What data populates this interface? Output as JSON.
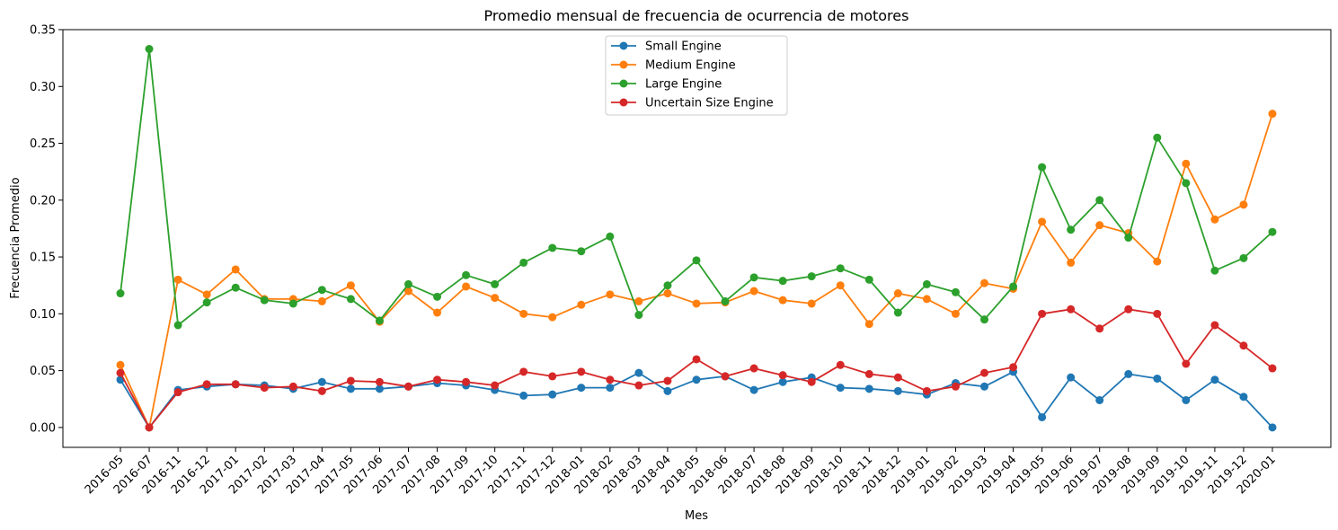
{
  "chart_data": {
    "type": "line",
    "title": "Promedio mensual de frecuencia de ocurrencia de motores",
    "xlabel": "Mes",
    "ylabel": "Frecuencia Promedio",
    "ylim": [
      -0.0175,
      0.35
    ],
    "yticks": [
      "0.00",
      "0.05",
      "0.10",
      "0.15",
      "0.20",
      "0.25",
      "0.30",
      "0.35"
    ],
    "grid": false,
    "legend_position": "top-center",
    "categories": [
      "2016-05",
      "2016-07",
      "2016-11",
      "2016-12",
      "2017-01",
      "2017-02",
      "2017-03",
      "2017-04",
      "2017-05",
      "2017-06",
      "2017-07",
      "2017-08",
      "2017-09",
      "2017-10",
      "2017-11",
      "2017-12",
      "2018-01",
      "2018-02",
      "2018-03",
      "2018-04",
      "2018-05",
      "2018-06",
      "2018-07",
      "2018-08",
      "2018-09",
      "2018-10",
      "2018-11",
      "2018-12",
      "2019-01",
      "2019-02",
      "2019-03",
      "2019-04",
      "2019-05",
      "2019-06",
      "2019-07",
      "2019-08",
      "2019-09",
      "2019-10",
      "2019-11",
      "2019-12",
      "2020-01"
    ],
    "series": [
      {
        "name": "Small Engine",
        "color": "#1f77b4",
        "values": [
          0.042,
          0.0,
          0.033,
          0.036,
          0.038,
          0.037,
          0.034,
          0.04,
          0.034,
          0.034,
          0.036,
          0.039,
          0.037,
          0.033,
          0.028,
          0.029,
          0.035,
          0.035,
          0.048,
          0.032,
          0.042,
          0.045,
          0.033,
          0.04,
          0.044,
          0.035,
          0.034,
          0.032,
          0.029,
          0.039,
          0.036,
          0.049,
          0.009,
          0.044,
          0.024,
          0.047,
          0.043,
          0.024,
          0.042,
          0.027,
          0.0
        ]
      },
      {
        "name": "Medium Engine",
        "color": "#ff7f0e",
        "values": [
          0.055,
          0.0,
          0.13,
          0.117,
          0.139,
          0.113,
          0.113,
          0.111,
          0.125,
          0.093,
          0.12,
          0.101,
          0.124,
          0.114,
          0.1,
          0.097,
          0.108,
          0.117,
          0.111,
          0.118,
          0.109,
          0.11,
          0.12,
          0.112,
          0.109,
          0.125,
          0.091,
          0.118,
          0.113,
          0.1,
          0.127,
          0.122,
          0.181,
          0.145,
          0.178,
          0.171,
          0.146,
          0.232,
          0.183,
          0.196,
          0.276
        ]
      },
      {
        "name": "Large Engine",
        "color": "#2ca02c",
        "values": [
          0.118,
          0.333,
          0.09,
          0.11,
          0.123,
          0.112,
          0.109,
          0.121,
          0.113,
          0.094,
          0.126,
          0.115,
          0.134,
          0.126,
          0.145,
          0.158,
          0.155,
          0.168,
          0.099,
          0.125,
          0.147,
          0.111,
          0.132,
          0.129,
          0.133,
          0.14,
          0.13,
          0.101,
          0.126,
          0.119,
          0.095,
          0.124,
          0.229,
          0.174,
          0.2,
          0.167,
          0.255,
          0.215,
          0.138,
          0.149,
          0.172
        ]
      },
      {
        "name": "Uncertain Size Engine",
        "color": "#d62728",
        "values": [
          0.048,
          0.0,
          0.031,
          0.038,
          0.038,
          0.035,
          0.036,
          0.032,
          0.041,
          0.04,
          0.036,
          0.042,
          0.04,
          0.037,
          0.049,
          0.045,
          0.049,
          0.042,
          0.037,
          0.041,
          0.06,
          0.045,
          0.052,
          0.046,
          0.04,
          0.055,
          0.047,
          0.044,
          0.032,
          0.036,
          0.048,
          0.053,
          0.1,
          0.104,
          0.087,
          0.104,
          0.1,
          0.056,
          0.09,
          0.072,
          0.052
        ]
      }
    ]
  }
}
